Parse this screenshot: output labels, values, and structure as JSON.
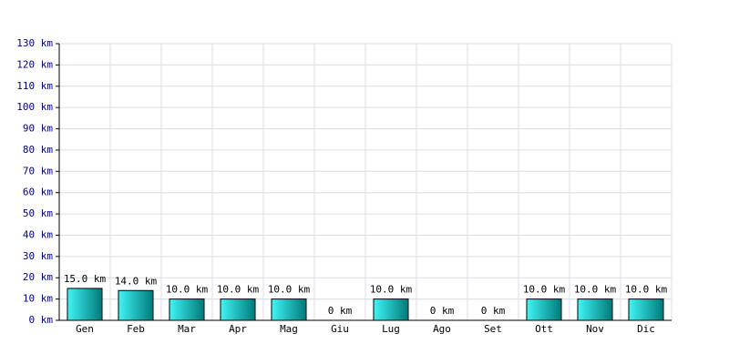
{
  "chart_data": {
    "type": "bar",
    "categories": [
      "Gen",
      "Feb",
      "Mar",
      "Apr",
      "Mag",
      "Giu",
      "Lug",
      "Ago",
      "Set",
      "Ott",
      "Nov",
      "Dic"
    ],
    "values": [
      15,
      14,
      10,
      10,
      10,
      0,
      10,
      0,
      0,
      10,
      10,
      10
    ],
    "value_labels": [
      "15.0 km",
      "14.0 km",
      "10.0 km",
      "10.0 km",
      "10.0 km",
      "0 km",
      "10.0 km",
      "0 km",
      "0 km",
      "10.0 km",
      "10.0 km",
      "10.0 km"
    ],
    "gradient": [
      "#40f4f4",
      "#007a7a"
    ],
    "ylim": [
      0,
      130
    ],
    "yticks": [
      {
        "value": 0,
        "label": "0 km"
      },
      {
        "value": 10,
        "label": "10 km"
      },
      {
        "value": 20,
        "label": "20 km"
      },
      {
        "value": 30,
        "label": "30 km"
      },
      {
        "value": 40,
        "label": "40 km"
      },
      {
        "value": 50,
        "label": "50 km"
      },
      {
        "value": 60,
        "label": "60 km"
      },
      {
        "value": 70,
        "label": "70 km"
      },
      {
        "value": 80,
        "label": "80 km"
      },
      {
        "value": 90,
        "label": "90 km"
      },
      {
        "value": 100,
        "label": "100 km"
      },
      {
        "value": 110,
        "label": "110 km"
      },
      {
        "value": 120,
        "label": "120 km"
      },
      {
        "value": 130,
        "label": "130 km"
      }
    ],
    "grid": true
  }
}
